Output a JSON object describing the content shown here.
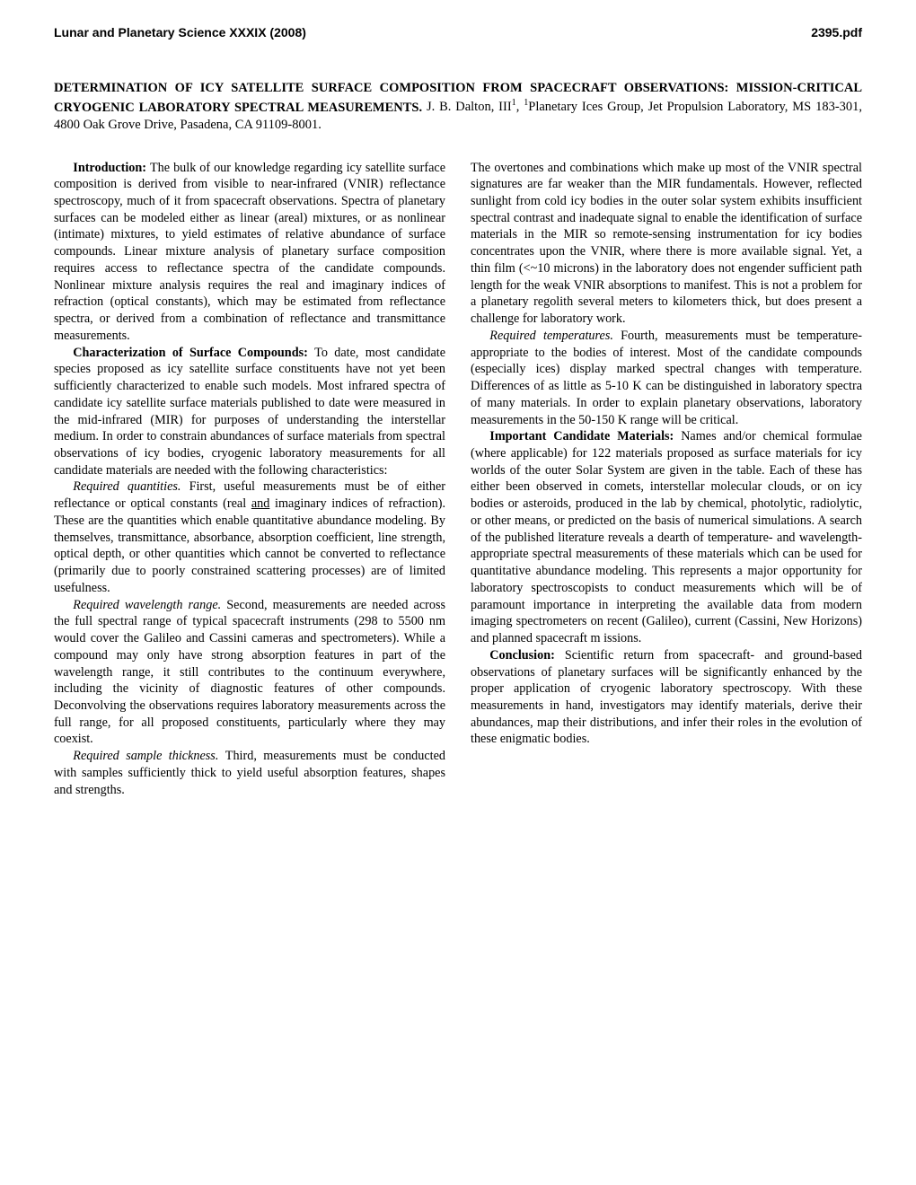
{
  "header": {
    "left": "Lunar and Planetary Science XXXIX (2008)",
    "right": "2395.pdf"
  },
  "title": {
    "main": "DETERMINATION OF ICY SATELLITE SURFACE COMPOSITION FROM SPACECRAFT OBSERVATIONS: MISSION-CRITICAL CRYOGENIC LABORATORY SPECTRAL MEASUREMENTS.",
    "authors_prefix": "J. B. Dalton, III",
    "authors_sup1": "1",
    "authors_mid": ", ",
    "authors_sup2": "1",
    "authors_rest": "Planetary Ices Group, Jet Propulsion Laboratory, MS 183-301, 4800 Oak Grove Drive, Pasadena, CA 91109-8001."
  },
  "left_column": {
    "p1_head": "Introduction: ",
    "p1": "The bulk of our knowledge regarding icy satellite surface composition is derived from visible to near-infrared (VNIR) reflectance spectroscopy, much of it from spacecraft observations. Spectra of planetary surfaces can be modeled either as linear (areal) mixtures, or as nonlinear (intimate) mixtures, to yield estimates of relative abundance of surface compounds. Linear mixture analysis of planetary surface composition requires access to reflectance spectra of the candidate compounds. Nonlinear mixture analysis requires the real and imaginary indices of refraction (optical constants), which may be estimated from reflectance spectra, or derived from a combination of reflectance and transmittance measurements.",
    "p2_head": "Characterization of Surface Compounds: ",
    "p2": "To date, most candidate species proposed as icy satellite surface constituents have not yet been sufficiently characterized to enable such models. Most infrared spectra of candidate icy satellite surface materials published to date were measured in the mid-infrared (MIR) for purposes of understanding the interstellar medium. In order to constrain abundances of surface materials from spectral observations of icy bodies, cryogenic laboratory measurements for all candidate materials are needed with the following characteristics:",
    "p3_it": "Required quantities. ",
    "p3a": "First, useful measurements must be of either reflectance or optical constants (real ",
    "p3_ul": "and",
    "p3b": " imaginary indices of refraction). These are the quantities which enable quantitative abundance modeling. By themselves, transmittance, absorbance, absorption coefficient, line strength, optical depth, or other quantities which cannot be converted to reflectance (primarily due to poorly constrained scattering processes) are of limited usefulness.",
    "p4_it": "Required wavelength range. ",
    "p4": "Second, measurements are needed across the full spectral range of typical spacecraft instruments (298 to 5500 nm would cover the Galileo and Cassini cameras and spectrometers). While a compound may only have strong absorption features in part of the wavelength range, it still contributes to the continuum everywhere, including the vicinity of diagnostic features of other compounds. Deconvolving the observations requires laboratory measurements across the full range, for all proposed constituents, particularly where they may coexist.",
    "p5_it": "Required sample thickness. ",
    "p5": "Third, measurements must be conducted with samples sufficiently thick to yield useful absorption features, shapes and strengths."
  },
  "right_column": {
    "p1": "The overtones and combinations which make up most of the VNIR spectral signatures are far weaker than the MIR fundamentals. However, reflected sunlight from cold icy bodies in the outer solar system exhibits insufficient spectral contrast and inadequate signal to enable the identification of surface materials in the MIR so remote-sensing instrumentation for icy bodies concentrates upon the VNIR, where there is more available signal. Yet, a thin film (<~10 microns) in the laboratory does not engender sufficient path length for the weak VNIR absorptions to manifest. This is not a problem for a planetary regolith several meters to kilometers thick, but does present a challenge for laboratory work.",
    "p2_it": "Required temperatures. ",
    "p2": "Fourth, measurements must be temperature-appropriate to the bodies of interest. Most of the candidate compounds (especially ices) display marked spectral changes with temperature. Differences of as little as 5-10 K can be distinguished in laboratory spectra of many materials. In order to explain planetary observations, laboratory measurements in the 50-150 K range will be critical.",
    "p3_head": "Important Candidate Materials: ",
    "p3": "Names and/or chemical formulae (where applicable) for 122 materials proposed as surface materials for icy worlds of the outer Solar System are given in the table. Each of these has either been observed in comets, interstellar molecular clouds, or on icy bodies or asteroids, produced in the lab by chemical, photolytic, radiolytic, or other means, or predicted on the basis of numerical simulations. A search of the published literature reveals a dearth of temperature- and wavelength-appropriate spectral measurements of these materials which can be used for quantitative abundance modeling. This represents a major opportunity for laboratory spectroscopists to conduct measurements which will be of paramount importance in interpreting the available data from modern imaging spectrometers on recent (Galileo), current (Cassini, New Horizons) and planned spacecraft m issions.",
    "p4_head": "Conclusion: ",
    "p4": "Scientific return from spacecraft- and ground-based observations of planetary surfaces will be significantly enhanced by the proper application of cryogenic laboratory spectroscopy. With these measurements in hand, investigators may identify materials, derive their abundances, map their distributions, and infer their roles in the evolution of these enigmatic bodies."
  }
}
